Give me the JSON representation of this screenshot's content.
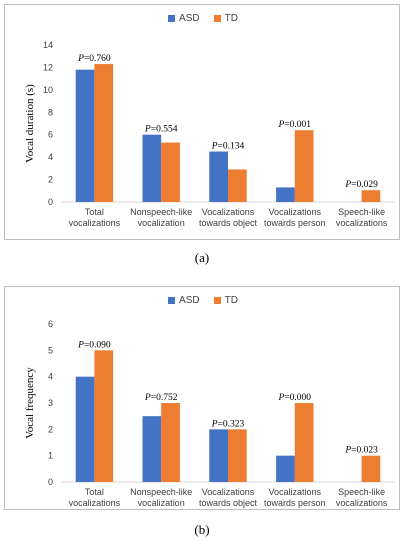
{
  "chart_data": [
    {
      "type": "bar",
      "panel_label": "(a)",
      "categories": [
        [
          "Total",
          "vocalizations"
        ],
        [
          "Nonspeech-like",
          "vocalization"
        ],
        [
          "Vocalizations",
          "towards object"
        ],
        [
          "Vocalizations",
          "towards person"
        ],
        [
          "Speech-like",
          "vocalizations"
        ]
      ],
      "series": [
        {
          "name": "ASD",
          "color": "#4472c4",
          "values": [
            11.8,
            6.0,
            4.5,
            1.3,
            0.0
          ]
        },
        {
          "name": "TD",
          "color": "#ed7d31",
          "values": [
            12.3,
            5.3,
            2.9,
            6.4,
            1.05
          ]
        }
      ],
      "annotations": [
        "P=0.760",
        "P=0.554",
        "P=0.134",
        "P=0.001",
        "P=0.029"
      ],
      "ylabel": "Vocal duration (s)",
      "ylim": [
        0,
        14
      ],
      "yticks": [
        "0",
        "2",
        "4",
        "6",
        "8",
        "10",
        "12",
        "14"
      ],
      "legend": "top"
    },
    {
      "type": "bar",
      "panel_label": "(b)",
      "categories": [
        [
          "Total",
          "vocalizations"
        ],
        [
          "Nonspeech-like",
          "vocalization"
        ],
        [
          "Vocalizations",
          "towards object"
        ],
        [
          "Vocalizations",
          "towards person"
        ],
        [
          "Speech-like",
          "vocalizations"
        ]
      ],
      "series": [
        {
          "name": "ASD",
          "color": "#4472c4",
          "values": [
            4.0,
            2.5,
            2.0,
            1.0,
            0.0
          ]
        },
        {
          "name": "TD",
          "color": "#ed7d31",
          "values": [
            5.0,
            3.0,
            2.0,
            3.0,
            1.0
          ]
        }
      ],
      "annotations": [
        "P=0.090",
        "P=0.752",
        "P=0.323",
        "P=0.000",
        "P=0.023"
      ],
      "ylabel": "Vocal frequency",
      "ylim": [
        0,
        6
      ],
      "yticks": [
        "0",
        "1",
        "2",
        "3",
        "4",
        "5",
        "6"
      ],
      "legend": "top"
    }
  ]
}
